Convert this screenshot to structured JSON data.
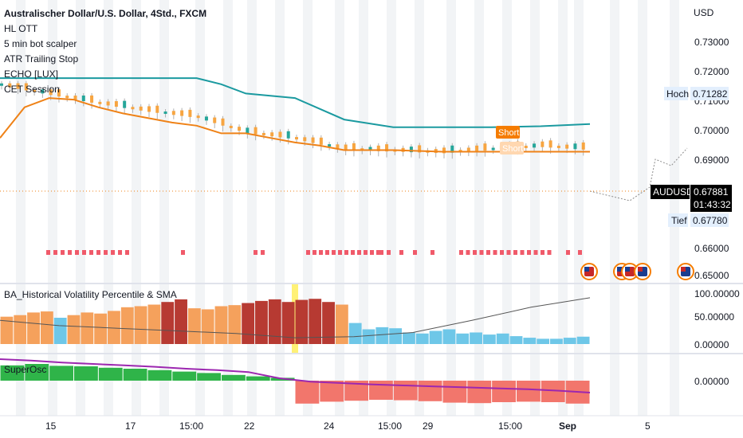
{
  "header": {
    "title": "Australischer Dollar/U.S. Dollar, 4Std., FXCM",
    "indicators": [
      "HL OTT",
      "5 min bot scalper",
      "ATR Trailing Stop",
      "ECHO [LUX]",
      "CET Session"
    ]
  },
  "price_axis": {
    "currency": "USD",
    "ticks": [
      "0.73000",
      "0.72000",
      "0.71000",
      "0.70000",
      "0.69000",
      "0.66000",
      "0.65000"
    ],
    "high_label": "Hoch",
    "high_value": "0.71282",
    "low_label": "Tief",
    "low_value": "0.67780",
    "symbol": "AUDUSD",
    "last_price": "0.67881",
    "countdown": "01:43:32"
  },
  "signals": {
    "short_label": "Short",
    "exit_label": "Short"
  },
  "hvp_pane": {
    "title": "BA_Historical Volatility Percentile & SMA",
    "ticks": [
      "100.00000",
      "50.00000",
      "0.00000"
    ]
  },
  "osc_pane": {
    "title": "SuperOsc",
    "ticks": [
      "0.00000"
    ]
  },
  "time_axis": {
    "labels": [
      "15",
      "17",
      "15:00",
      "22",
      "24",
      "15:00",
      "29",
      "15:00",
      "Sep",
      "5"
    ]
  },
  "colors": {
    "teal_line": "#1b9aa0",
    "orange_line": "#ef8217",
    "candle_up": "#26a69a",
    "candle_down": "#f7a541",
    "session_band": "#eceff2",
    "red_marker": "#f05a6a",
    "hvp_low": "#6ec7e8",
    "hvp_mid": "#f5a15c",
    "hvp_high": "#b73a32",
    "osc_pos": "#2fb449",
    "osc_neg": "#f2766c",
    "osc_line": "#9c27b0"
  },
  "chart_data": [
    {
      "type": "line",
      "name": "price",
      "ylabel": "USD",
      "ylim": [
        0.645,
        0.737
      ],
      "x_ticks": [
        "15",
        "17",
        "15:00",
        "22",
        "24",
        "15:00",
        "29",
        "15:00",
        "Sep",
        "5"
      ],
      "series": [
        {
          "x": [
            0,
            10,
            20,
            30,
            40,
            45,
            50,
            60,
            70,
            80,
            90,
            100,
            110,
            120
          ],
          "values": [
            0.7115,
            0.7115,
            0.7115,
            0.7115,
            0.7115,
            0.7095,
            0.7065,
            0.705,
            0.698,
            0.6955,
            0.6955,
            0.6955,
            0.6958,
            0.6965
          ]
        },
        {
          "x": [
            0,
            5,
            10,
            15,
            20,
            25,
            30,
            35,
            40,
            45,
            50,
            55,
            60,
            65,
            70,
            80,
            90,
            100,
            110,
            120
          ],
          "values": [
            0.692,
            0.702,
            0.705,
            0.7045,
            0.702,
            0.7,
            0.6985,
            0.697,
            0.696,
            0.6935,
            0.6935,
            0.692,
            0.6905,
            0.6895,
            0.688,
            0.688,
            0.6875,
            0.6875,
            0.6875,
            0.6875
          ]
        },
        {
          "x": [
            0,
            10,
            20,
            30,
            40,
            50,
            60,
            70,
            80,
            90,
            100,
            110,
            120
          ],
          "values": [
            0.709,
            0.706,
            0.703,
            0.7005,
            0.6985,
            0.6935,
            0.6915,
            0.688,
            0.6875,
            0.687,
            0.688,
            0.689,
            0.688
          ]
        }
      ]
    },
    {
      "type": "bar",
      "name": "historical volatility percentile",
      "ylim": [
        0,
        100
      ],
      "values": [
        52,
        55,
        60,
        62,
        50,
        55,
        60,
        58,
        63,
        70,
        72,
        75,
        80,
        85,
        68,
        66,
        72,
        74,
        78,
        82,
        85,
        80,
        84,
        86,
        80,
        75,
        40,
        28,
        32,
        30,
        22,
        20,
        25,
        28,
        20,
        22,
        18,
        20,
        15,
        12,
        10,
        10,
        12,
        14
      ],
      "sma": [
        45,
        35,
        30,
        25,
        20,
        12,
        14,
        22,
        45,
        70,
        88
      ]
    },
    {
      "type": "bar",
      "name": "SuperOsc",
      "values": [
        0.32,
        0.35,
        0.31,
        0.3,
        0.27,
        0.25,
        0.22,
        0.19,
        0.16,
        0.12,
        0.09,
        0.06,
        -0.48,
        -0.44,
        -0.42,
        -0.4,
        -0.41,
        -0.43,
        -0.46,
        -0.47,
        -0.45,
        -0.44,
        -0.45,
        -0.48
      ],
      "line": [
        0.45,
        0.42,
        0.38,
        0.35,
        0.32,
        0.29,
        0.25,
        0.22,
        0.18,
        0.05,
        -0.02,
        -0.05,
        -0.08,
        -0.1,
        -0.12,
        -0.14,
        -0.16,
        -0.18,
        -0.21,
        -0.25
      ]
    }
  ]
}
